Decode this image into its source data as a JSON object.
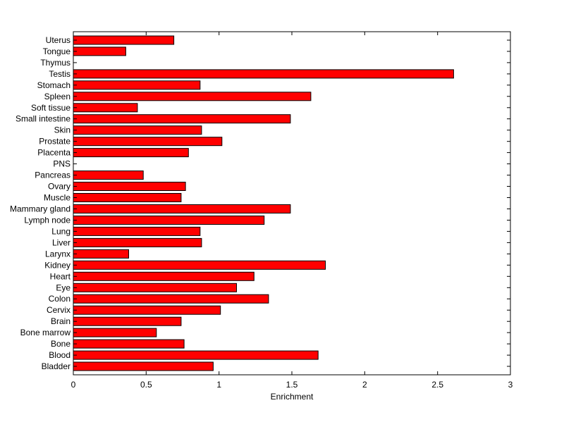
{
  "chart_data": {
    "type": "bar",
    "orientation": "horizontal",
    "title": "",
    "xlabel": "Enrichment",
    "ylabel": "",
    "xlim": [
      0,
      3
    ],
    "xticks": [
      "0",
      "0.5",
      "1",
      "1.5",
      "2",
      "2.5",
      "3"
    ],
    "grid": false,
    "bar_color": "#ff0000",
    "categories": [
      "Uterus",
      "Tongue",
      "Thymus",
      "Testis",
      "Stomach",
      "Spleen",
      "Soft tissue",
      "Small intestine",
      "Skin",
      "Prostate",
      "Placenta",
      "PNS",
      "Pancreas",
      "Ovary",
      "Muscle",
      "Mammary gland",
      "Lymph node",
      "Lung",
      "Liver",
      "Larynx",
      "Kidney",
      "Heart",
      "Eye",
      "Colon",
      "Cervix",
      "Brain",
      "Bone marrow",
      "Bone",
      "Blood",
      "Bladder"
    ],
    "values": [
      0.69,
      0.36,
      0,
      2.61,
      0.87,
      1.63,
      0.44,
      1.49,
      0.88,
      1.02,
      0.79,
      0,
      0.48,
      0.77,
      0.74,
      1.49,
      1.31,
      0.87,
      0.88,
      0.38,
      1.73,
      1.24,
      1.12,
      1.34,
      1.01,
      0.74,
      0.57,
      0.76,
      1.68,
      0.96
    ]
  }
}
